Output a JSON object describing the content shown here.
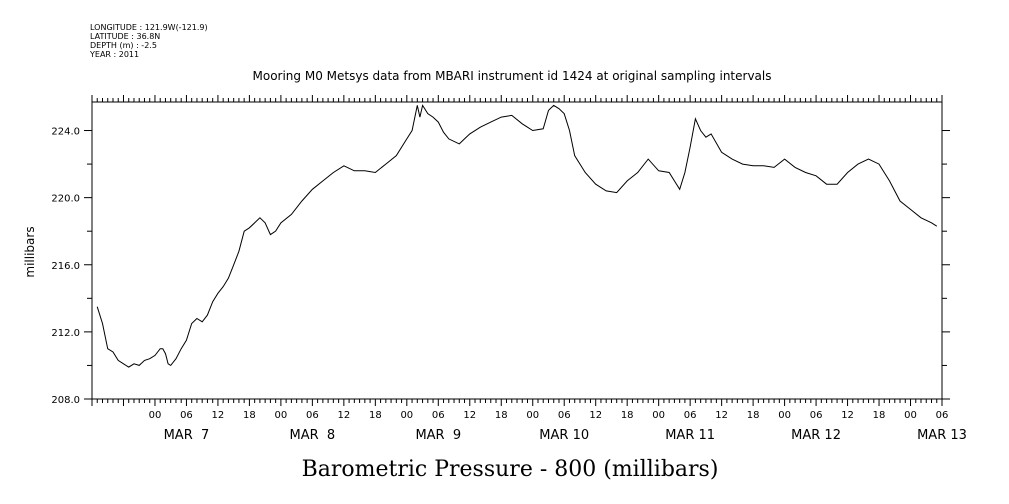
{
  "header": {
    "longitude": "LONGITUDE : 121.9W(-121.9)",
    "latitude": "LATITUDE : 36.8N",
    "depth": "DEPTH (m) : -2.5",
    "year": "YEAR : 2011"
  },
  "chart_data": {
    "type": "line",
    "title": "Mooring M0 Metsys data from MBARI instrument id 1424 at original sampling intervals",
    "xlabel": "Barometric Pressure - 800 (millibars)",
    "ylabel": "millibars",
    "ylim": [
      208.0,
      225.7
    ],
    "yticks": [
      "208.0",
      "212.0",
      "216.0",
      "220.0",
      "224.0"
    ],
    "y_minor_step": 2.0,
    "x_unit": "hours since MAR 7 00",
    "xlim": [
      -12,
      150
    ],
    "hour_ticks": [
      "00",
      "06",
      "12",
      "18"
    ],
    "days": [
      "MAR  7",
      "MAR  8",
      "MAR  9",
      "MAR 10",
      "MAR 11",
      "MAR 12",
      "MAR 13"
    ],
    "grid": false,
    "series": [
      {
        "points": [
          [
            -11,
            213.5
          ],
          [
            -10,
            212.5
          ],
          [
            -9,
            211.0
          ],
          [
            -8,
            210.8
          ],
          [
            -7,
            210.3
          ],
          [
            -6,
            210.1
          ],
          [
            -5,
            209.9
          ],
          [
            -4,
            210.1
          ],
          [
            -3,
            210.0
          ],
          [
            -2,
            210.3
          ],
          [
            -1,
            210.4
          ],
          [
            0,
            210.6
          ],
          [
            1,
            211.0
          ],
          [
            1.5,
            211.0
          ],
          [
            2,
            210.7
          ],
          [
            2.5,
            210.1
          ],
          [
            3,
            210.0
          ],
          [
            4,
            210.4
          ],
          [
            5,
            211.0
          ],
          [
            6,
            211.5
          ],
          [
            7,
            212.5
          ],
          [
            8,
            212.8
          ],
          [
            9,
            212.6
          ],
          [
            10,
            213.0
          ],
          [
            11,
            213.8
          ],
          [
            12,
            214.3
          ],
          [
            13,
            214.7
          ],
          [
            14,
            215.2
          ],
          [
            15,
            216.0
          ],
          [
            16,
            216.8
          ],
          [
            17,
            218.0
          ],
          [
            18,
            218.2
          ],
          [
            19,
            218.5
          ],
          [
            20,
            218.8
          ],
          [
            21,
            218.5
          ],
          [
            22,
            217.8
          ],
          [
            23,
            218.0
          ],
          [
            24,
            218.5
          ],
          [
            26,
            219.0
          ],
          [
            28,
            219.8
          ],
          [
            30,
            220.5
          ],
          [
            32,
            221.0
          ],
          [
            34,
            221.5
          ],
          [
            36,
            221.9
          ],
          [
            38,
            221.6
          ],
          [
            40,
            221.6
          ],
          [
            42,
            221.5
          ],
          [
            44,
            222.0
          ],
          [
            46,
            222.5
          ],
          [
            48,
            223.5
          ],
          [
            49,
            224.0
          ],
          [
            50,
            225.5
          ],
          [
            50.5,
            224.8
          ],
          [
            51,
            225.5
          ],
          [
            52,
            225.0
          ],
          [
            53,
            224.8
          ],
          [
            54,
            224.5
          ],
          [
            55,
            223.9
          ],
          [
            56,
            223.5
          ],
          [
            58,
            223.2
          ],
          [
            59,
            223.5
          ],
          [
            60,
            223.8
          ],
          [
            62,
            224.2
          ],
          [
            64,
            224.5
          ],
          [
            66,
            224.8
          ],
          [
            68,
            224.9
          ],
          [
            70,
            224.4
          ],
          [
            71,
            224.2
          ],
          [
            72,
            224.0
          ],
          [
            74,
            224.1
          ],
          [
            75,
            225.2
          ],
          [
            76,
            225.5
          ],
          [
            77,
            225.3
          ],
          [
            78,
            225.0
          ],
          [
            79,
            224.0
          ],
          [
            80,
            222.5
          ],
          [
            82,
            221.5
          ],
          [
            84,
            220.8
          ],
          [
            86,
            220.4
          ],
          [
            88,
            220.3
          ],
          [
            90,
            221.0
          ],
          [
            92,
            221.5
          ],
          [
            94,
            222.3
          ],
          [
            96,
            221.6
          ],
          [
            98,
            221.5
          ],
          [
            99,
            221.0
          ],
          [
            100,
            220.5
          ],
          [
            101,
            221.5
          ],
          [
            102,
            223.0
          ],
          [
            103,
            224.7
          ],
          [
            104,
            224.0
          ],
          [
            105,
            223.6
          ],
          [
            106,
            223.8
          ],
          [
            108,
            222.7
          ],
          [
            110,
            222.3
          ],
          [
            112,
            222.0
          ],
          [
            114,
            221.9
          ],
          [
            116,
            221.9
          ],
          [
            118,
            221.8
          ],
          [
            120,
            222.3
          ],
          [
            122,
            221.8
          ],
          [
            124,
            221.5
          ],
          [
            126,
            221.3
          ],
          [
            128,
            220.8
          ],
          [
            130,
            220.8
          ],
          [
            132,
            221.5
          ],
          [
            134,
            222.0
          ],
          [
            136,
            222.3
          ],
          [
            138,
            222.0
          ],
          [
            140,
            221.0
          ],
          [
            142,
            219.8
          ],
          [
            144,
            219.3
          ],
          [
            146,
            218.8
          ],
          [
            148,
            218.5
          ],
          [
            149,
            218.3
          ]
        ]
      }
    ]
  }
}
